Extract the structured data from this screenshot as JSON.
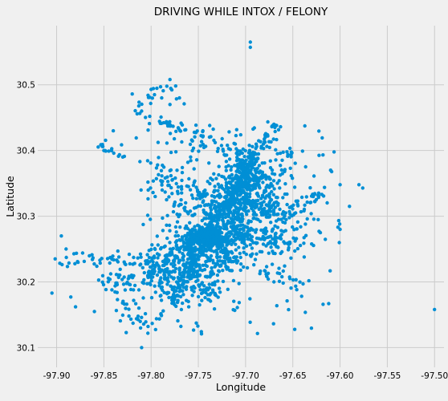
{
  "chart_data": {
    "type": "scatter",
    "title": "DRIVING WHILE INTOX / FELONY",
    "xlabel": "Longitude",
    "ylabel": "Latitude",
    "xlim": [
      -97.92,
      -97.49
    ],
    "ylim": [
      30.07,
      30.59
    ],
    "xticks": [
      "-97.90",
      "-97.85",
      "-97.80",
      "-97.75",
      "-97.70",
      "-97.65",
      "-97.60",
      "-97.55",
      "-97.50"
    ],
    "yticks": [
      "30.1",
      "30.2",
      "30.3",
      "30.4",
      "30.5"
    ],
    "grid": true,
    "legend": "none",
    "colors": {
      "points": "#008fd5",
      "background": "#f0f0f0",
      "grid": "#cbcbcb"
    },
    "points_sample": [
      {
        "x": -97.695,
        "y": 30.565
      },
      {
        "x": -97.695,
        "y": 30.557
      },
      {
        "x": -97.78,
        "y": 30.508
      },
      {
        "x": -97.79,
        "y": 30.497
      },
      {
        "x": -97.8,
        "y": 30.493
      },
      {
        "x": -97.77,
        "y": 30.48
      },
      {
        "x": -97.82,
        "y": 30.486
      },
      {
        "x": -97.765,
        "y": 30.471
      },
      {
        "x": -97.78,
        "y": 30.47
      },
      {
        "x": -97.81,
        "y": 30.46
      },
      {
        "x": -97.89,
        "y": 30.25
      },
      {
        "x": -97.895,
        "y": 30.27
      },
      {
        "x": -97.905,
        "y": 30.183
      },
      {
        "x": -97.88,
        "y": 30.162
      },
      {
        "x": -97.885,
        "y": 30.177
      },
      {
        "x": -97.81,
        "y": 30.1
      },
      {
        "x": -97.5,
        "y": 30.158
      },
      {
        "x": -97.58,
        "y": 30.348
      },
      {
        "x": -97.576,
        "y": 30.343
      },
      {
        "x": -97.59,
        "y": 30.315
      },
      {
        "x": -97.61,
        "y": 30.37
      },
      {
        "x": -97.6,
        "y": 30.348
      },
      {
        "x": -97.6,
        "y": 30.28
      },
      {
        "x": -97.618,
        "y": 30.166
      },
      {
        "x": -97.85,
        "y": 30.4
      },
      {
        "x": -97.83,
        "y": 30.39
      },
      {
        "x": -97.84,
        "y": 30.43
      },
      {
        "x": -97.86,
        "y": 30.155
      },
      {
        "x": -97.74,
        "y": 30.268
      },
      {
        "x": -97.73,
        "y": 30.27
      },
      {
        "x": -97.745,
        "y": 30.262
      },
      {
        "x": -97.7,
        "y": 30.35
      },
      {
        "x": -97.69,
        "y": 30.37
      },
      {
        "x": -97.67,
        "y": 30.44
      }
    ]
  }
}
